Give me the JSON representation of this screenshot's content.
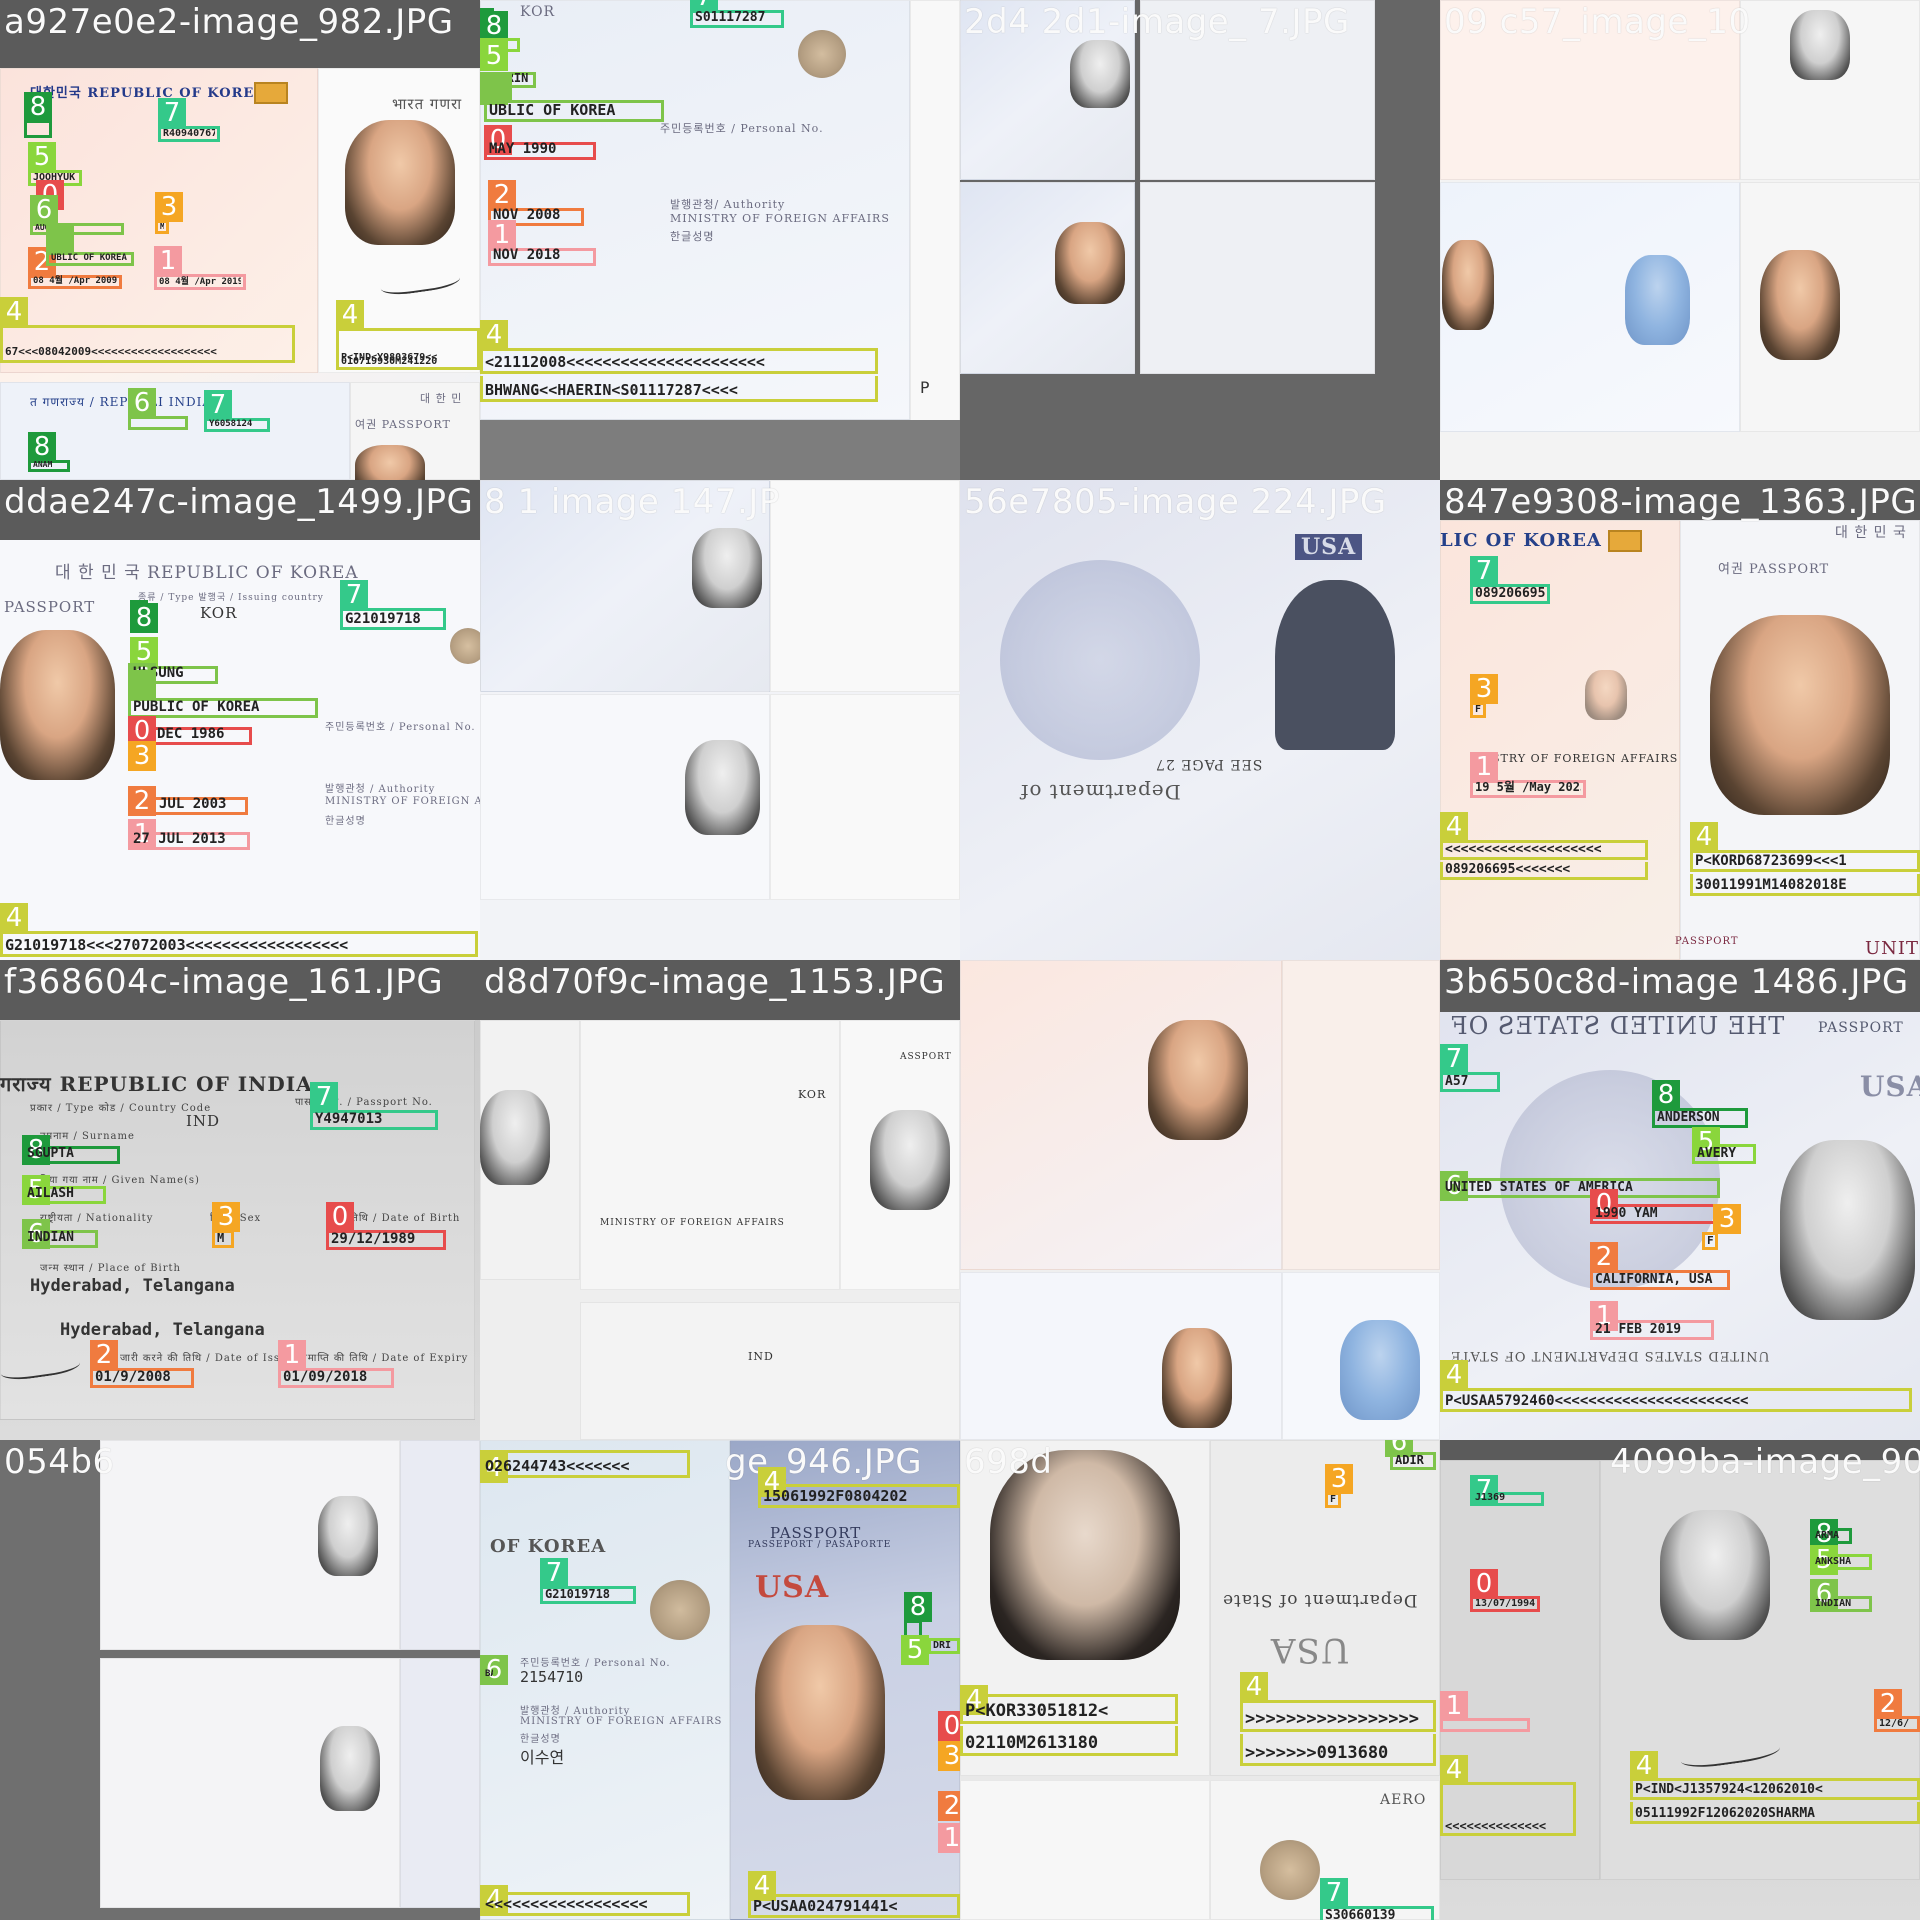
{
  "tiles": [
    {
      "label": "a927e0e2-image_982.JPG"
    },
    {
      "label": ""
    },
    {
      "label": "2d4 2d1-image_ 7.JPG"
    },
    {
      "label": "09 c57_image_10"
    },
    {
      "label": "ddae247c-image_1499.JPG"
    },
    {
      "label": "8 1 image 147.JP"
    },
    {
      "label": "56e7805-image 224.JPG"
    },
    {
      "label": "847e9308-image_1363.JPG"
    },
    {
      "label": "f368604c-image_161.JPG"
    },
    {
      "label": "d8d70f9c-image_1153.JPG"
    },
    {
      "label": ""
    },
    {
      "label": "3b650c8d-image 1486.JPG"
    },
    {
      "label": "054b6"
    },
    {
      "label": "ge_946.JPG"
    },
    {
      "label": "698d"
    },
    {
      "label": "4099ba-image_90.JPG"
    }
  ],
  "headers": {
    "t0_country": "대한민국  REPUBLIC OF KOREA",
    "t0_india": "भारत गणरा",
    "t0_india2": "त गणराज्य / REPUBLI  INDIA",
    "t0_passport": "대 한 민",
    "t0_passport2": "여권 PASSPORT",
    "t1_personal": "주민등록번호 / Personal No.",
    "t1_authority": "발행관청/ Authority",
    "t1_ministry": "MINISTRY OF FOREIGN AFFAIRS",
    "t1_korean": "한글성명",
    "t1_kor": "KOR",
    "t4_title": "대 한 민 국   REPUBLIC OF KOREA",
    "t4_passport": "PASSPORT",
    "t4_type": "종류 / Type    발행국 / Issuing country",
    "t4_kor": "KOR",
    "t4_personal": "주민등록번호 / Personal No.",
    "t4_authority": "발행관청 / Authority",
    "t4_ministry": "MINISTRY OF FOREIGN AFFAIRS",
    "t4_korean": "한글성명",
    "t6_usa": "USA",
    "t6_dept": "Department of",
    "t6_seepage": "SEE PAGE 27",
    "t7_country": "LIC OF KOREA",
    "t7_passport": "여권 PASSPORT",
    "t7_kor": "대 한 민 국",
    "t7_ministry": "STRY OF FOREIGN AFFAIRS",
    "t7_passportb": "PASSPORT",
    "t7_unite": "UNITE",
    "t8_title": "गराज्य  REPUBLIC OF INDIA",
    "t8_type": "प्रकार / Type       कोड / Country Code",
    "t8_passno": "पासपोर्ट सं. / Passport No.",
    "t8_ind": "IND",
    "t8_surname": "उपनाम / Surname",
    "t8_given": "दिया गया नाम / Given Name(s)",
    "t8_nat": "राष्ट्रीयता / Nationality",
    "t8_sex": "लिंग / Sex",
    "t8_dob": "जन्मतिथि / Date of Birth",
    "t8_pob_lbl": "जन्म स्थान / Place of Birth",
    "t8_pob": "Hyderabad, Telangana",
    "t8_poi": "Hyderabad, Telangana",
    "t8_doi_lbl": "जारी करने की तिथि / Date of Issue",
    "t8_doe_lbl": "समाप्ति की तिथि / Date of Expiry",
    "t9_ministry": "MINISTRY OF FOREIGN AFFAIRS",
    "t9_kor": "KOR",
    "t9_passport": "ASSPORT",
    "t9_ind": "IND",
    "t11_the": "THE UNITED STATES OF",
    "t11_passport": "PASSPORT",
    "t11_usa": "USA",
    "t11_dept": "UNITED STATES DEPARTMENT OF STATE",
    "t13_korea": "OF KOREA",
    "t13_personal": "주민등록번호 / Personal No.",
    "t13_number": "2154710",
    "t13_authority": "발행관청 / Authority",
    "t13_ministry": "MINISTRY OF FOREIGN AFFAIRS",
    "t13_korean": "한글성명",
    "t13_name": "이수연",
    "t13_passport": "PASSPORT",
    "t13_passport2": "PASSEPORT / PASAPORTE",
    "t13_usa": "USA",
    "t14_dept": "Department of State",
    "t14_usa": "USA",
    "t14_mirrored": "AERO"
  },
  "boxes": {
    "t0": [
      {
        "cls": 8,
        "value": ""
      },
      {
        "cls": 5,
        "value": "JOOHYUK"
      },
      {
        "cls": 7,
        "value": "R40940767"
      },
      {
        "cls": 0,
        "value": ""
      },
      {
        "cls": 6,
        "value": "AUG 1990"
      },
      {
        "cls": 3,
        "value": "M"
      },
      {
        "cls": 2,
        "value": "08 4월 /Apr 2009"
      },
      {
        "cls": 6,
        "value": "UBLIC OF KOREA"
      },
      {
        "cls": 1,
        "value": "08 4월 /Apr 2019"
      },
      {
        "cls": 4,
        "value": "67<<<08042009<<<<<<<<<<<<<<<<<<<"
      },
      {
        "cls": 4,
        "value": "P<IND<Y9803679<<"
      },
      {
        "cls": 4,
        "value": "010719930M241220"
      },
      {
        "cls": 6,
        "value": ""
      },
      {
        "cls": 7,
        "value": "Y6058124"
      },
      {
        "cls": 8,
        "value": "ANAM"
      }
    ],
    "t1": [
      {
        "cls": 7,
        "value": "S01117287"
      },
      {
        "cls": 8,
        "value": ""
      },
      {
        "cls": 5,
        "value": ""
      },
      {
        "cls": 6,
        "value": "HAERIN"
      },
      {
        "cls": 6,
        "value": "UBLIC OF KOREA"
      },
      {
        "cls": 0,
        "value": "MAY 1990"
      },
      {
        "cls": 2,
        "value": "NOV 2008"
      },
      {
        "cls": 1,
        "value": "NOV 2018"
      },
      {
        "cls": 4,
        "value": "<21112008<<<<<<<<<<<<<<<<<<<<<<"
      },
      {
        "cls": 4,
        "value": "BHWANG<<HAERIN<S01117287<<<<"
      }
    ],
    "t4": [
      {
        "cls": 7,
        "value": "G21019718"
      },
      {
        "cls": 8,
        "value": ""
      },
      {
        "cls": 5,
        "value": ""
      },
      {
        "cls": 6,
        "value": "ULSUNG"
      },
      {
        "cls": 6,
        "value": "PUBLIC OF KOREA"
      },
      {
        "cls": 0,
        "value": "DEC 1986"
      },
      {
        "cls": 3,
        "value": ""
      },
      {
        "cls": 2,
        "value": "JUL 2003"
      },
      {
        "cls": 1,
        "value": "27 JUL 2013"
      },
      {
        "cls": 4,
        "value": "G21019718<<<27072003<<<<<<<<<<<<<<<<<<"
      }
    ],
    "t7": [
      {
        "cls": 7,
        "value": "089206695"
      },
      {
        "cls": 3,
        "value": "F"
      },
      {
        "cls": 1,
        "value": "19 5월 /May 2023"
      },
      {
        "cls": 4,
        "value": "<<<<<<<<<<<<<<<<<<<<"
      },
      {
        "cls": 4,
        "value": "089206695<<<<<<<"
      },
      {
        "cls": 4,
        "value": "P<KORD68723699<<<1"
      },
      {
        "cls": 4,
        "value": "30011991M14082018E"
      }
    ],
    "t8": [
      {
        "cls": 7,
        "value": "Y4947013"
      },
      {
        "cls": 8,
        "value": "SGUPTA"
      },
      {
        "cls": 5,
        "value": "AILASH"
      },
      {
        "cls": 6,
        "value": "INDIAN"
      },
      {
        "cls": 3,
        "value": "M"
      },
      {
        "cls": 0,
        "value": "29/12/1989"
      },
      {
        "cls": 2,
        "value": "01/9/2008"
      },
      {
        "cls": 1,
        "value": "01/09/2018"
      }
    ],
    "t11": [
      {
        "cls": 7,
        "value": "A57"
      },
      {
        "cls": 8,
        "value": "ANDERSON"
      },
      {
        "cls": 5,
        "value": "AVERY"
      },
      {
        "cls": 6,
        "value": "UNITED STATES OF AMERICA"
      },
      {
        "cls": 0,
        "value": "1990 YAM"
      },
      {
        "cls": 3,
        "value": "F"
      },
      {
        "cls": 2,
        "value": "CALIFORNIA, USA"
      },
      {
        "cls": 1,
        "value": "21 FEB 2019"
      },
      {
        "cls": 4,
        "value": "P<USAA5792460<<<<<<<<<<<<<<<<<<<<<<<"
      }
    ],
    "t13": [
      {
        "cls": 4,
        "value": "O26244743<<<<<<<"
      },
      {
        "cls": 4,
        "value": "15061992F0804202"
      },
      {
        "cls": 7,
        "value": "G21019718"
      },
      {
        "cls": 8,
        "value": ""
      },
      {
        "cls": 5,
        "value": "DRI"
      },
      {
        "cls": 6,
        "value": "BA"
      },
      {
        "cls": 0,
        "value": ""
      },
      {
        "cls": 3,
        "value": ""
      },
      {
        "cls": 2,
        "value": ""
      },
      {
        "cls": 1,
        "value": ""
      },
      {
        "cls": 4,
        "value": "<<<<<<<<<<<<<<<<<<"
      },
      {
        "cls": 4,
        "value": "P<USAA024791441<"
      }
    ],
    "t14": [
      {
        "cls": 3,
        "value": "F"
      },
      {
        "cls": 6,
        "value": "ADIR"
      },
      {
        "cls": 4,
        "value": "P<KOR33051812<"
      },
      {
        "cls": 4,
        "value": "02110M2613180"
      },
      {
        "cls": 4,
        "value": ">>>>>>>>>>>>>>>>>"
      },
      {
        "cls": 4,
        "value": ">>>>>>>0913680"
      },
      {
        "cls": 7,
        "value": "S30660139"
      }
    ],
    "t15": [
      {
        "cls": 7,
        "value": "J1369"
      },
      {
        "cls": 8,
        "value": "ARMA"
      },
      {
        "cls": 5,
        "value": "ANKSHA"
      },
      {
        "cls": 6,
        "value": "INDIAN"
      },
      {
        "cls": 0,
        "value": "13/07/1994"
      },
      {
        "cls": 1,
        "value": ""
      },
      {
        "cls": 2,
        "value": "12/6/"
      },
      {
        "cls": 4,
        "value": "<<<<<<<<<<<<<<"
      },
      {
        "cls": 4,
        "value": "P<IND<J1357924<12062010<"
      },
      {
        "cls": 4,
        "value": "05111992F12062020SHARMA"
      }
    ]
  }
}
